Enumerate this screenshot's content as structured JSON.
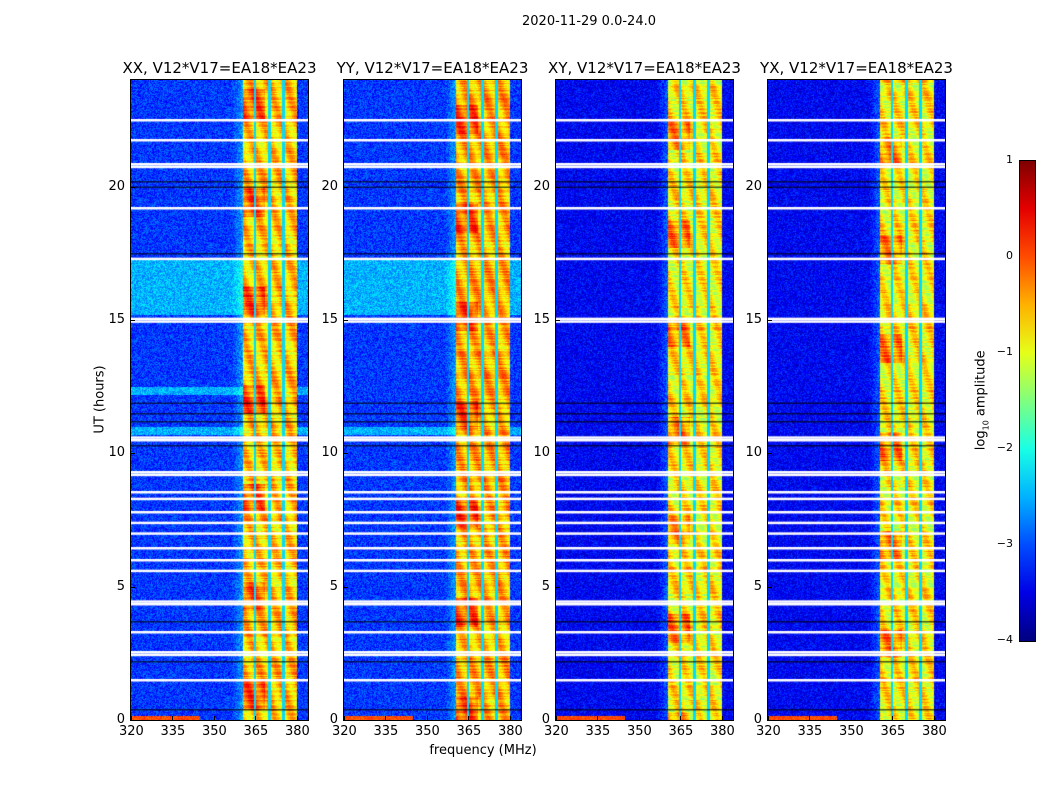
{
  "chart_data": {
    "type": "heatmap",
    "title": "2020-11-29 0.0-24.0",
    "xlabel": "frequency (MHz)",
    "ylabel": "UT (hours)",
    "xlim": [
      320,
      384
    ],
    "ylim": [
      0,
      24
    ],
    "xticks": [
      "320",
      "335",
      "350",
      "365",
      "380"
    ],
    "xtick_values": [
      320,
      335,
      350,
      365,
      380
    ],
    "yticks": [
      "0",
      "5",
      "10",
      "15",
      "20"
    ],
    "ytick_values": [
      0,
      5,
      10,
      15,
      20
    ],
    "colormap": "jet",
    "colorbar": {
      "label_main": "log",
      "label_sub": "10",
      "label_rest": " amplitude",
      "range": [
        -4,
        1
      ],
      "ticks": [
        "1",
        "0",
        "−1",
        "−2",
        "−3",
        "−4"
      ],
      "tick_values": [
        1,
        0,
        -1,
        -2,
        -3,
        -4
      ]
    },
    "rfi_band_mhz": [
      360.5,
      380
    ],
    "band_gap_channels_mhz": [
      364.8,
      370.2,
      375.2
    ],
    "flagged_hours": [
      22.5,
      21.75,
      20.85,
      20.75,
      19.2,
      17.3,
      15.05,
      14.95,
      10.6,
      10.5,
      9.3,
      9.2,
      8.55,
      8.3,
      7.8,
      7.4,
      7.0,
      6.45,
      6.0,
      5.6,
      4.45,
      4.35,
      3.3,
      2.55,
      2.45,
      1.5
    ],
    "dark_hours": [
      20.2,
      20.0,
      17.5,
      11.9,
      11.5,
      11.2,
      10.3,
      3.7,
      2.2,
      0.4
    ],
    "panels": [
      {
        "title": "XX, V12*V17=EA18*EA23",
        "background_level": -3.1,
        "band_level": -0.6,
        "bright_hours": [
          [
            15.2,
            17.3
          ],
          [
            10.7,
            11.0
          ],
          [
            12.2,
            12.5
          ]
        ]
      },
      {
        "title": "YY, V12*V17=EA18*EA23",
        "background_level": -3.1,
        "band_level": -0.5,
        "bright_hours": [
          [
            15.2,
            17.3
          ],
          [
            10.7,
            11.0
          ]
        ]
      },
      {
        "title": "XY, V12*V17=EA18*EA23",
        "background_level": -3.4,
        "band_level": -0.8,
        "bright_hours": []
      },
      {
        "title": "YX, V12*V17=EA18*EA23",
        "background_level": -3.4,
        "band_level": -0.8,
        "bright_hours": []
      }
    ]
  }
}
